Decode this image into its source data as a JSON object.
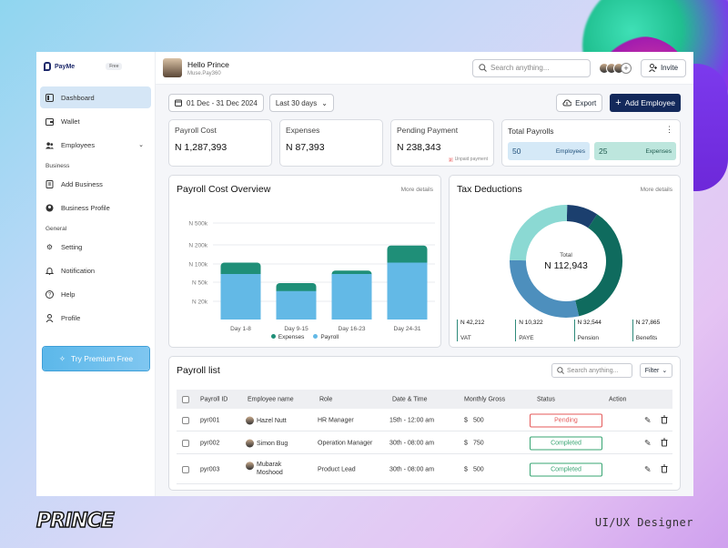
{
  "app": {
    "name": "PayMe",
    "plan_badge": "Free"
  },
  "sidebar": {
    "items": [
      {
        "label": "Dashboard",
        "icon": "dashboard-icon",
        "active": true
      },
      {
        "label": "Wallet",
        "icon": "wallet-icon"
      },
      {
        "label": "Employees",
        "icon": "users-icon"
      }
    ],
    "section_business": "Business",
    "business_items": [
      {
        "label": "Add Business",
        "icon": "building-icon"
      },
      {
        "label": "Business Profile",
        "icon": "user-circle-icon"
      }
    ],
    "section_general": "General",
    "general_items": [
      {
        "label": "Setting",
        "icon": "gear-icon"
      },
      {
        "label": "Notification",
        "icon": "bell-icon"
      },
      {
        "label": "Help",
        "icon": "help-icon"
      },
      {
        "label": "Profile",
        "icon": "person-icon"
      }
    ],
    "premium_label": "Try Premium Free"
  },
  "header": {
    "greeting": "Hello Prince",
    "subtitle": "Muse.Pay360",
    "search_placeholder": "Search anything...",
    "invite_label": "Invite"
  },
  "filters": {
    "date_range": "01 Dec - 31 Dec 2024",
    "period": "Last 30 days",
    "export_label": "Export",
    "add_employee_label": "Add Employee"
  },
  "stats": [
    {
      "label": "Payroll Cost",
      "value": "N 1,287,393"
    },
    {
      "label": "Expenses",
      "value": "N 87,393"
    },
    {
      "label": "Pending Payment",
      "value": "N 238,343",
      "note": "Unpaid payment",
      "note_count": "2"
    }
  ],
  "total_payrolls": {
    "title": "Total Payrolls",
    "employees_value": "50",
    "employees_label": "Employees",
    "expenses_value": "25",
    "expenses_label": "Expenses"
  },
  "payroll_overview": {
    "title": "Payroll Cost  Overview",
    "more": "More details"
  },
  "chart_data": {
    "type": "bar",
    "stacked": true,
    "categories": [
      "Day 1-8",
      "Day 9-15",
      "Day 16-23",
      "Day 24-31"
    ],
    "y_ticks": [
      {
        "label": "N 20k",
        "value": 20
      },
      {
        "label": "N 50k",
        "value": 50
      },
      {
        "label": "N 100k",
        "value": 100
      },
      {
        "label": "N 200k",
        "value": 200
      },
      {
        "label": "N 500k",
        "value": 500
      }
    ],
    "y_scale": "nonlinear",
    "series": [
      {
        "name": "Payroll",
        "color": "#63b9e6",
        "values": [
          40,
          25,
          40,
          50
        ]
      },
      {
        "name": "Expenses",
        "color": "#1f8f78",
        "values": [
          10,
          7,
          3,
          15
        ]
      }
    ],
    "bar_totals_ticks": [
      50,
      32,
      43,
      65
    ],
    "grid": true,
    "legend": "bottom-center"
  },
  "tax_deductions": {
    "title": "Tax Deductions",
    "more": "More details",
    "total_label": "Total",
    "total_value": "N 112,943",
    "items": [
      {
        "label": "VAT",
        "value": "N 42,212",
        "color": "#0f6b5e",
        "share": 0.37
      },
      {
        "label": "PAYE",
        "value": "N 10,322",
        "color": "#1b3f6e",
        "share": 0.09
      },
      {
        "label": "Pension",
        "value": "N 32,544",
        "color": "#4d8fbd",
        "share": 0.29
      },
      {
        "label": "Benefits",
        "value": "N 27,865",
        "color": "#8bd9d3",
        "share": 0.25
      }
    ]
  },
  "payroll_list": {
    "title": "Payroll list",
    "search_placeholder": "Search anything...",
    "filter_label": "Filter",
    "columns": [
      "Payroll ID",
      "Employee name",
      "Role",
      "Date & Time",
      "Monthly Gross",
      "Status",
      "Action"
    ],
    "rows": [
      {
        "id": "pyr001",
        "name": "Hazel Nutt",
        "role": "HR Manager",
        "datetime": "15th - 12:00 am",
        "currency": "$",
        "gross": "500",
        "status": "Pending"
      },
      {
        "id": "pyr002",
        "name": "Simon Bug",
        "role": "Operation Manager",
        "datetime": "30th - 08:00 am",
        "currency": "$",
        "gross": "750",
        "status": "Completed"
      },
      {
        "id": "pyr003",
        "name": "Mubarak Moshood",
        "role": "Product Lead",
        "datetime": "30th - 08:00 am",
        "currency": "$",
        "gross": "500",
        "status": "Completed"
      }
    ]
  },
  "footer": {
    "brand": "PRINCE",
    "role": "UI/UX Designer"
  }
}
